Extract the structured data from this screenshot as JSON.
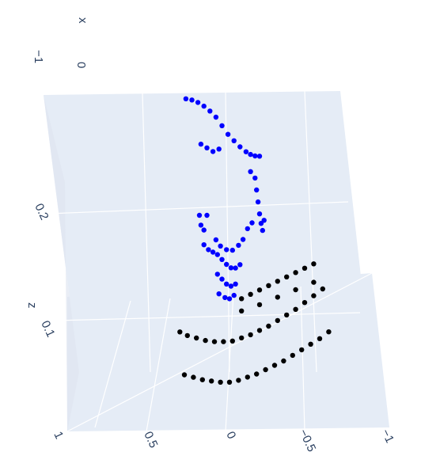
{
  "chart_data": {
    "type": "scatter3d",
    "axes": {
      "x": {
        "title": "x",
        "ticks": [
          "−1",
          "0"
        ]
      },
      "y": {
        "title": "",
        "ticks": [
          "1",
          "0.5",
          "0",
          "−0.5",
          "−1"
        ]
      },
      "z": {
        "title": "z",
        "ticks": [
          "0.2",
          "0.1"
        ]
      }
    },
    "series": [
      {
        "color": "#0000ff",
        "values": [
          [
            0.29,
            0.255
          ],
          [
            0.25,
            0.254
          ],
          [
            0.21,
            0.252
          ],
          [
            0.17,
            0.249
          ],
          [
            0.13,
            0.245
          ],
          [
            0.09,
            0.24
          ],
          [
            0.05,
            0.233
          ],
          [
            0.01,
            0.226
          ],
          [
            -0.03,
            0.22
          ],
          [
            -0.07,
            0.214
          ],
          [
            -0.11,
            0.209
          ],
          [
            -0.14,
            0.206
          ],
          [
            -0.17,
            0.204
          ],
          [
            -0.2,
            0.203
          ],
          [
            0.19,
            0.218
          ],
          [
            0.15,
            0.215
          ],
          [
            0.11,
            0.212
          ],
          [
            0.07,
            0.214
          ],
          [
            -0.17,
            0.186
          ],
          [
            -0.18,
            0.176
          ],
          [
            -0.19,
            0.166
          ],
          [
            -0.2,
            0.156
          ],
          [
            -0.21,
            0.148
          ],
          [
            -0.22,
            0.142
          ],
          [
            -0.23,
            0.15
          ],
          [
            0.2,
            0.16
          ],
          [
            0.19,
            0.152
          ],
          [
            0.17,
            0.148
          ],
          [
            0.09,
            0.14
          ],
          [
            0.06,
            0.135
          ],
          [
            0.02,
            0.132
          ],
          [
            -0.02,
            0.131
          ],
          [
            -0.06,
            0.134
          ],
          [
            -0.09,
            0.138
          ],
          [
            -0.12,
            0.146
          ],
          [
            -0.15,
            0.15
          ],
          [
            0.17,
            0.136
          ],
          [
            0.14,
            0.132
          ],
          [
            0.11,
            0.13
          ],
          [
            0.08,
            0.128
          ],
          [
            0.05,
            0.124
          ],
          [
            0.02,
            0.12
          ],
          [
            -0.01,
            0.117
          ],
          [
            -0.04,
            0.116
          ],
          [
            -0.07,
            0.118
          ],
          [
            0.08,
            0.112
          ],
          [
            0.05,
            0.108
          ],
          [
            0.02,
            0.104
          ],
          [
            -0.01,
            0.102
          ],
          [
            -0.04,
            0.103
          ],
          [
            0.07,
            0.096
          ],
          [
            0.03,
            0.093
          ],
          [
            0.0,
            0.092
          ],
          [
            -0.03,
            0.094
          ],
          [
            0.15,
            0.16
          ],
          [
            -0.14,
            0.192
          ]
        ]
      },
      {
        "color": "#000000",
        "values": [
          [
            0.33,
            0.065
          ],
          [
            0.28,
            0.062
          ],
          [
            0.22,
            0.06
          ],
          [
            0.16,
            0.058
          ],
          [
            0.1,
            0.057
          ],
          [
            0.04,
            0.057
          ],
          [
            -0.02,
            0.057
          ],
          [
            -0.08,
            0.058
          ],
          [
            -0.14,
            0.059
          ],
          [
            -0.2,
            0.061
          ],
          [
            -0.26,
            0.063
          ],
          [
            -0.32,
            0.066
          ],
          [
            -0.38,
            0.069
          ],
          [
            -0.44,
            0.072
          ],
          [
            -0.5,
            0.076
          ],
          [
            -0.56,
            0.08
          ],
          [
            -0.62,
            0.084
          ],
          [
            0.3,
            0.03
          ],
          [
            0.24,
            0.028
          ],
          [
            0.18,
            0.026
          ],
          [
            0.12,
            0.025
          ],
          [
            0.06,
            0.024
          ],
          [
            0.0,
            0.024
          ],
          [
            -0.06,
            0.024
          ],
          [
            -0.12,
            0.025
          ],
          [
            -0.18,
            0.026
          ],
          [
            -0.24,
            0.028
          ],
          [
            -0.3,
            0.03
          ],
          [
            -0.36,
            0.032
          ],
          [
            -0.42,
            0.035
          ],
          [
            -0.48,
            0.038
          ],
          [
            -0.54,
            0.041
          ],
          [
            -0.6,
            0.044
          ],
          [
            -0.66,
            0.048
          ],
          [
            -0.08,
            0.09
          ],
          [
            -0.14,
            0.092
          ],
          [
            -0.2,
            0.094
          ],
          [
            -0.26,
            0.096
          ],
          [
            -0.32,
            0.098
          ],
          [
            -0.38,
            0.1
          ],
          [
            -0.44,
            0.102
          ],
          [
            -0.5,
            0.104
          ],
          [
            -0.56,
            0.106
          ],
          [
            -0.08,
            0.08
          ],
          [
            -0.2,
            0.082
          ],
          [
            -0.32,
            0.085
          ],
          [
            -0.44,
            0.088
          ],
          [
            -0.56,
            0.091
          ]
        ]
      }
    ]
  }
}
